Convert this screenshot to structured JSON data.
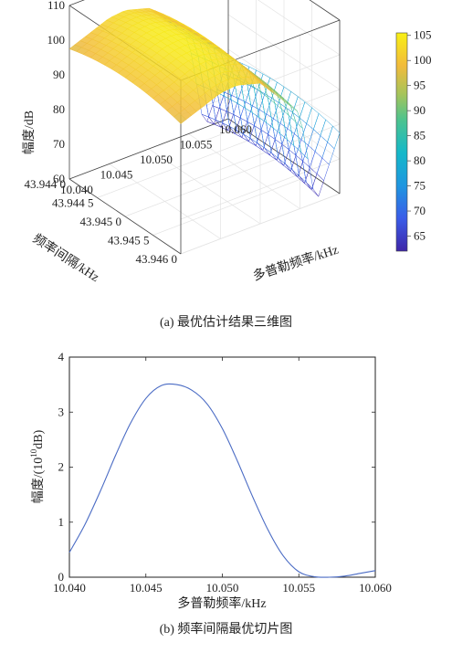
{
  "chart_data": [
    {
      "type": "surface3d",
      "caption": "(a) 最优估计结果三维图",
      "xlabel": "多普勒频率/kHz",
      "ylabel": "频率间隔/kHz",
      "zlabel": "幅度/dB",
      "x_ticks": [
        "10.040",
        "10.045",
        "10.050",
        "10.055",
        "10.060"
      ],
      "y_ticks": [
        "43.946 0",
        "43.945 5",
        "43.945 0",
        "43.944 5",
        "43.944 0"
      ],
      "z_ticks": [
        "60",
        "70",
        "80",
        "90",
        "100",
        "110"
      ],
      "xlim": [
        10.04,
        10.06
      ],
      "ylim": [
        43.944,
        43.946
      ],
      "zlim": [
        60,
        110
      ],
      "colorbar": {
        "ticks": [
          "65",
          "70",
          "75",
          "80",
          "85",
          "90",
          "95",
          "100",
          "105"
        ],
        "range": [
          62,
          105.5
        ],
        "colormap": "parula"
      },
      "surface": {
        "peak_doppler_khz": 10.047,
        "peak_db": 105,
        "ridge_db_at_x": [
          [
            10.04,
            100
          ],
          [
            10.045,
            104.5
          ],
          [
            10.047,
            105
          ],
          [
            10.05,
            103
          ],
          [
            10.055,
            90
          ],
          [
            10.057,
            62
          ],
          [
            10.06,
            80
          ]
        ]
      }
    },
    {
      "type": "line",
      "caption": "(b) 频率间隔最优切片图",
      "xlabel": "多普勒频率/kHz",
      "ylabel_main": "幅度/(10",
      "ylabel_sup": "10",
      "ylabel_tail": "dB)",
      "x_ticks": [
        "10.040",
        "10.045",
        "10.050",
        "10.055",
        "10.060"
      ],
      "y_ticks": [
        "0",
        "1",
        "2",
        "3",
        "4"
      ],
      "xlim": [
        10.04,
        10.06
      ],
      "ylim": [
        0,
        4
      ],
      "series": [
        {
          "color": "#4a6bc4",
          "x": [
            10.04,
            10.041,
            10.042,
            10.043,
            10.044,
            10.045,
            10.046,
            10.047,
            10.048,
            10.049,
            10.05,
            10.051,
            10.052,
            10.053,
            10.054,
            10.055,
            10.056,
            10.057,
            10.058,
            10.059,
            10.06
          ],
          "y": [
            0.45,
            0.95,
            1.55,
            2.2,
            2.8,
            3.25,
            3.48,
            3.5,
            3.4,
            3.15,
            2.7,
            2.1,
            1.45,
            0.85,
            0.38,
            0.1,
            0.01,
            0.0,
            0.02,
            0.07,
            0.12
          ]
        }
      ]
    }
  ]
}
